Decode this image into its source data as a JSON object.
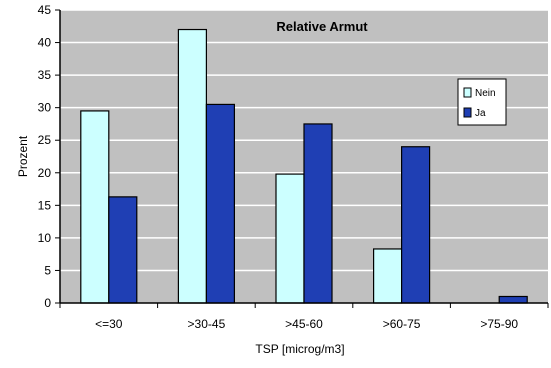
{
  "chart_data": {
    "type": "bar",
    "title": "Relative Armut",
    "xlabel": "TSP [microg/m3]",
    "ylabel": "Prozent",
    "ylim": [
      0,
      45
    ],
    "ytick_step": 5,
    "grid": true,
    "legend_position": "right",
    "categories": [
      "<=30",
      ">30-45",
      ">45-60",
      ">60-75",
      ">75-90"
    ],
    "series": [
      {
        "name": "Nein",
        "color": "#ccffff",
        "values": [
          29.5,
          42,
          19.8,
          8.3,
          0
        ]
      },
      {
        "name": "Ja",
        "color": "#1f3fb4",
        "values": [
          16.3,
          30.5,
          27.5,
          24,
          1
        ]
      }
    ]
  },
  "style": {
    "plot_background": "#c0c0c0",
    "grid_color": "#ffffff",
    "axis_color": "#000000"
  }
}
